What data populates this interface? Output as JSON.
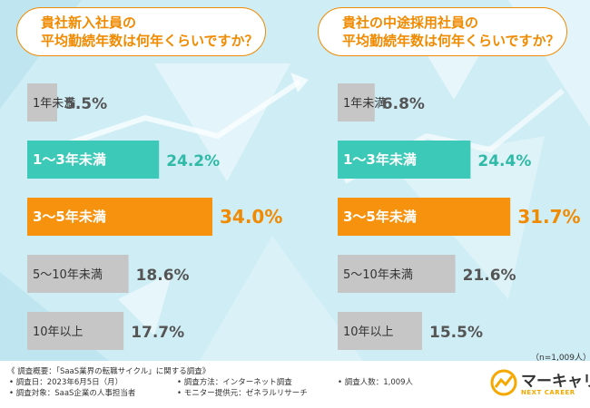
{
  "questions": {
    "left": {
      "line1": "貴社新入社員の",
      "line2": "平均勤続年数は何年くらいですか？"
    },
    "right": {
      "line1": "貴社の中途採用社員の",
      "line2": "平均勤続年数は何年くらいですか？"
    }
  },
  "sample_size": "（n=1,009人）",
  "footer": {
    "title": "《 調査概要：「SaaS業界の転職サイクル」に関する調査》",
    "date": "• 調査日：2023年6月5日（月）",
    "method": "• 調査方法：インターネット調査",
    "count": "• 調査人数：1,009人",
    "target": "• 調査対象：SaaS企業の人事担当者",
    "provider": "• モニター提供元：ゼネラルリサーチ"
  },
  "logo": {
    "name": "マーキャリ",
    "sub": "NEXT CAREER"
  },
  "colors": {
    "orange": "#f7920f",
    "teal": "#3cc9b7",
    "gray": "#c6c6c6",
    "value_orange": "#f08a00",
    "value_teal": "#2fb9a6",
    "value_gray": "#555555",
    "background": "#cfedf5"
  },
  "chart_data": [
    {
      "type": "bar",
      "orientation": "horizontal",
      "question": "貴社新入社員の平均勤続年数は何年くらいですか？",
      "categories": [
        "1年未満",
        "1〜3年未満",
        "3〜5年未満",
        "5〜10年未満",
        "10年以上"
      ],
      "values": [
        5.5,
        24.2,
        34.0,
        18.6,
        17.7
      ],
      "labels": [
        "5.5%",
        "24.2%",
        "34.0%",
        "18.6%",
        "17.7%"
      ],
      "highlight": [
        "gray",
        "teal",
        "orange",
        "gray",
        "gray"
      ],
      "unit": "%"
    },
    {
      "type": "bar",
      "orientation": "horizontal",
      "question": "貴社の中途採用社員の平均勤続年数は何年くらいですか？",
      "categories": [
        "1年未満",
        "1〜3年未満",
        "3〜5年未満",
        "5〜10年未満",
        "10年以上"
      ],
      "values": [
        6.8,
        24.4,
        31.7,
        21.6,
        15.5
      ],
      "labels": [
        "6.8%",
        "24.4%",
        "31.7%",
        "21.6%",
        "15.5%"
      ],
      "highlight": [
        "gray",
        "teal",
        "orange",
        "gray",
        "gray"
      ],
      "unit": "%"
    }
  ]
}
